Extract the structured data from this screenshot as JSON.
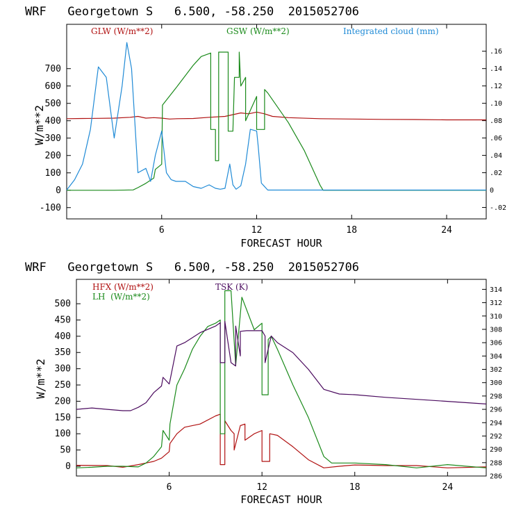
{
  "chart_data": [
    {
      "type": "line",
      "title": "WRF   Georgetown S   6.500, -58.250  2015052706",
      "xlabel": "FORECAST HOUR",
      "ylabel": "W/m**2",
      "xlim": [
        0,
        26.5
      ],
      "ylim": [
        -165,
        955
      ],
      "x_ticks": [
        "6",
        "12",
        "18",
        "24"
      ],
      "y_ticks": [
        "-100",
        "0",
        "100",
        "200",
        "300",
        "400",
        "500",
        "600",
        "700"
      ],
      "right_ylim": [
        -0.0332,
        0.191
      ],
      "right_ticks": [
        "-.02",
        "0",
        ".02",
        ".04",
        ".06",
        ".08",
        ".10",
        ".12",
        ".14",
        ".16"
      ],
      "series": [
        {
          "name": "GLW (W/m**2)",
          "color": "#b01010",
          "axis": "left",
          "x": [
            0,
            1,
            2,
            3,
            4,
            4.5,
            5,
            5.5,
            6,
            6.5,
            7,
            8,
            9,
            10,
            11,
            11.5,
            12,
            12.5,
            13,
            14,
            16,
            18,
            20,
            22,
            24,
            26.5
          ],
          "y": [
            412,
            413,
            414,
            415,
            420,
            425,
            415,
            418,
            415,
            410,
            412,
            413,
            420,
            425,
            445,
            440,
            450,
            440,
            425,
            418,
            412,
            410,
            408,
            407,
            405,
            405
          ]
        },
        {
          "name": "GSW (W/m**2)",
          "color": "#1a8a1a",
          "axis": "left",
          "x": [
            0,
            3,
            4.2,
            4.5,
            5,
            5.5,
            5.6,
            6,
            6.05,
            7,
            8,
            8.5,
            9.1,
            9.1,
            9.4,
            9.4,
            9.6,
            9.6,
            10.2,
            10.2,
            10.5,
            10.6,
            10.9,
            10.9,
            11.0,
            11.3,
            11.3,
            12,
            12,
            12.5,
            12.5,
            12.7,
            14,
            15,
            16,
            16.2,
            26.5
          ],
          "y": [
            0,
            0,
            2,
            15,
            40,
            70,
            120,
            150,
            490,
            600,
            720,
            770,
            790,
            350,
            350,
            170,
            170,
            795,
            795,
            340,
            340,
            650,
            650,
            795,
            600,
            650,
            400,
            540,
            350,
            350,
            580,
            560,
            390,
            230,
            30,
            0,
            0
          ]
        },
        {
          "name": "Integrated cloud (mm)",
          "color": "#1f8ad6",
          "axis": "right",
          "x": [
            0,
            0.5,
            1,
            1.5,
            2,
            2.5,
            3,
            3.5,
            3.8,
            4.1,
            4.5,
            5,
            5.3,
            5.6,
            6,
            6.3,
            6.6,
            6.9,
            7.5,
            8,
            8.5,
            9,
            9.4,
            9.7,
            10,
            10.3,
            10.5,
            10.7,
            11,
            11.3,
            11.6,
            12,
            12.1,
            12.3,
            12.7,
            13,
            14,
            18,
            26.5
          ],
          "y": [
            0,
            0.012,
            0.03,
            0.07,
            0.142,
            0.13,
            0.06,
            0.12,
            0.17,
            0.14,
            0.02,
            0.025,
            0.01,
            0.04,
            0.068,
            0.02,
            0.012,
            0.01,
            0.01,
            0.004,
            0.002,
            0.006,
            0.002,
            0.001,
            0.002,
            0.03,
            0.006,
            0.001,
            0.005,
            0.03,
            0.07,
            0.068,
            0.05,
            0.008,
            0,
            0,
            0,
            0,
            0
          ]
        }
      ]
    },
    {
      "type": "line",
      "title": "WRF   Georgetown S   6.500, -58.250  2015052706",
      "xlabel": "FORECAST HOUR",
      "ylabel": "W/m**2",
      "xlim": [
        0,
        26.5
      ],
      "ylim": [
        -30,
        575
      ],
      "x_ticks": [
        "6",
        "12",
        "18",
        "24"
      ],
      "y_ticks": [
        "0",
        "50",
        "100",
        "150",
        "200",
        "250",
        "300",
        "350",
        "400",
        "450",
        "500"
      ],
      "right_ylim": [
        286,
        315.5
      ],
      "right_ticks": [
        "286",
        "288",
        "290",
        "292",
        "294",
        "296",
        "298",
        "300",
        "302",
        "304",
        "306",
        "308",
        "310",
        "312",
        "314"
      ],
      "series": [
        {
          "name": "HFX (W/m**2)",
          "color": "#b01010",
          "axis": "left",
          "x": [
            0,
            2,
            3,
            4,
            4.5,
            5,
            5.5,
            6,
            6.05,
            6.5,
            7,
            8,
            9,
            9.3,
            9.3,
            9.6,
            9.6,
            10,
            10.2,
            10.2,
            10.6,
            10.9,
            10.9,
            11.5,
            12,
            12,
            12.5,
            12.5,
            13,
            14,
            15,
            16,
            17,
            18,
            20,
            22,
            24,
            26.5
          ],
          "y": [
            3,
            2,
            -3,
            5,
            10,
            15,
            25,
            45,
            70,
            100,
            120,
            130,
            155,
            160,
            5,
            5,
            140,
            110,
            100,
            50,
            125,
            130,
            80,
            100,
            110,
            15,
            15,
            100,
            95,
            60,
            20,
            -5,
            0,
            4,
            2,
            2,
            -5,
            -2
          ]
        },
        {
          "name": "LH  (W/m**2)",
          "color": "#1a8a1a",
          "axis": "left",
          "x": [
            0,
            1,
            2,
            3,
            4,
            4.5,
            5,
            5.5,
            5.6,
            6,
            6.05,
            6.5,
            7,
            7.5,
            8,
            8.5,
            9,
            9.3,
            9.3,
            9.6,
            9.6,
            10,
            10.3,
            10.3,
            10.7,
            10.7,
            11.5,
            11.5,
            12,
            12,
            12.4,
            12.4,
            12.6,
            13,
            14,
            15,
            16,
            16.5,
            18,
            20,
            22,
            24,
            26.5
          ],
          "y": [
            -5,
            -3,
            0,
            0,
            -2,
            10,
            30,
            60,
            110,
            80,
            130,
            250,
            300,
            360,
            400,
            430,
            440,
            450,
            100,
            100,
            540,
            540,
            310,
            310,
            520,
            520,
            420,
            420,
            440,
            220,
            220,
            390,
            400,
            360,
            250,
            150,
            30,
            10,
            10,
            5,
            -5,
            5,
            -5
          ]
        },
        {
          "name": "TSK (K)",
          "color": "#4a0a5e",
          "axis": "right",
          "x": [
            0,
            1,
            2,
            3,
            3.5,
            4,
            4.5,
            5,
            5.5,
            5.6,
            6,
            6.05,
            6.5,
            7,
            8,
            9,
            9.3,
            9.3,
            9.6,
            9.6,
            10,
            10.3,
            10.3,
            10.6,
            10.6,
            11,
            12,
            12.2,
            12.2,
            12.6,
            13,
            14,
            15,
            16,
            17,
            18,
            20,
            22,
            24,
            26.5
          ],
          "y": [
            296,
            296.2,
            296,
            295.8,
            295.8,
            296.3,
            297,
            298.5,
            299.5,
            300.8,
            299.8,
            300.3,
            305.5,
            306,
            307.5,
            308.5,
            309,
            303,
            303,
            309.2,
            303,
            302.5,
            308.5,
            304,
            307.7,
            307.8,
            307.8,
            307,
            303,
            307,
            306,
            304.5,
            302,
            299,
            298.3,
            298.2,
            297.8,
            297.5,
            297.2,
            296.8
          ]
        }
      ]
    }
  ],
  "panels": [
    {
      "legend": {
        "glw": "GLW (W/m**2)",
        "gsw": "GSW (W/m**2)",
        "cloud": "Integrated cloud (mm)"
      }
    },
    {
      "legend": {
        "hfx": "HFX (W/m**2)",
        "lh": "LH  (W/m**2)",
        "tsk": "TSK (K)"
      }
    }
  ]
}
